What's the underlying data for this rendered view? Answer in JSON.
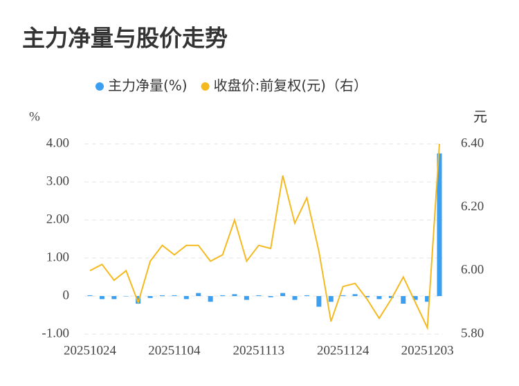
{
  "chart_data": {
    "type": "bar-line",
    "title": "主力净量与股价走势",
    "y_label": "%",
    "y2_label": "元",
    "categories": [
      "20251024",
      null,
      null,
      null,
      null,
      null,
      null,
      "20251104",
      null,
      null,
      null,
      null,
      null,
      null,
      "20251113",
      null,
      null,
      null,
      null,
      null,
      null,
      "20251124",
      null,
      null,
      null,
      null,
      null,
      null,
      "20251203",
      null
    ],
    "series": [
      {
        "name": "主力净量(%)",
        "type": "bar",
        "color": "#3a9ff0",
        "values": [
          0.02,
          -0.08,
          -0.08,
          0,
          -0.2,
          -0.05,
          0.02,
          0.02,
          -0.08,
          0.08,
          -0.15,
          0.02,
          0.05,
          -0.1,
          0.02,
          -0.03,
          0.08,
          -0.1,
          0.02,
          -0.28,
          -0.15,
          0.02,
          0.05,
          -0.03,
          -0.08,
          -0.05,
          -0.2,
          -0.1,
          -0.15,
          3.75
        ]
      },
      {
        "name": "收盘价:前复权(元)（右）",
        "type": "line",
        "color": "#f5b91e",
        "axis": "y2",
        "values": [
          6.0,
          6.02,
          5.97,
          6.0,
          5.9,
          6.03,
          6.08,
          6.05,
          6.08,
          6.08,
          6.03,
          6.05,
          6.16,
          6.03,
          6.08,
          6.07,
          6.3,
          6.15,
          6.23,
          6.06,
          5.84,
          5.95,
          5.96,
          5.91,
          5.85,
          5.91,
          5.98,
          5.9,
          5.82,
          6.4
        ]
      }
    ],
    "ylim": [
      -1,
      4
    ],
    "yticks": [
      {
        "value": -1,
        "label": "-1.00"
      },
      0,
      {
        "value": 1,
        "label": "1.00"
      },
      {
        "value": 2,
        "label": "2.00"
      },
      {
        "value": 3,
        "label": "3.00"
      },
      {
        "value": 4,
        "label": "4.00"
      }
    ],
    "y2lim": [
      5.8,
      6.4
    ],
    "y2ticks": [
      {
        "value": 5.8,
        "label": "5.80"
      },
      {
        "value": 6,
        "label": "6.00"
      },
      {
        "value": 6.2,
        "label": "6.20"
      },
      {
        "value": 6.4,
        "label": "6.40"
      }
    ],
    "grid": true
  }
}
